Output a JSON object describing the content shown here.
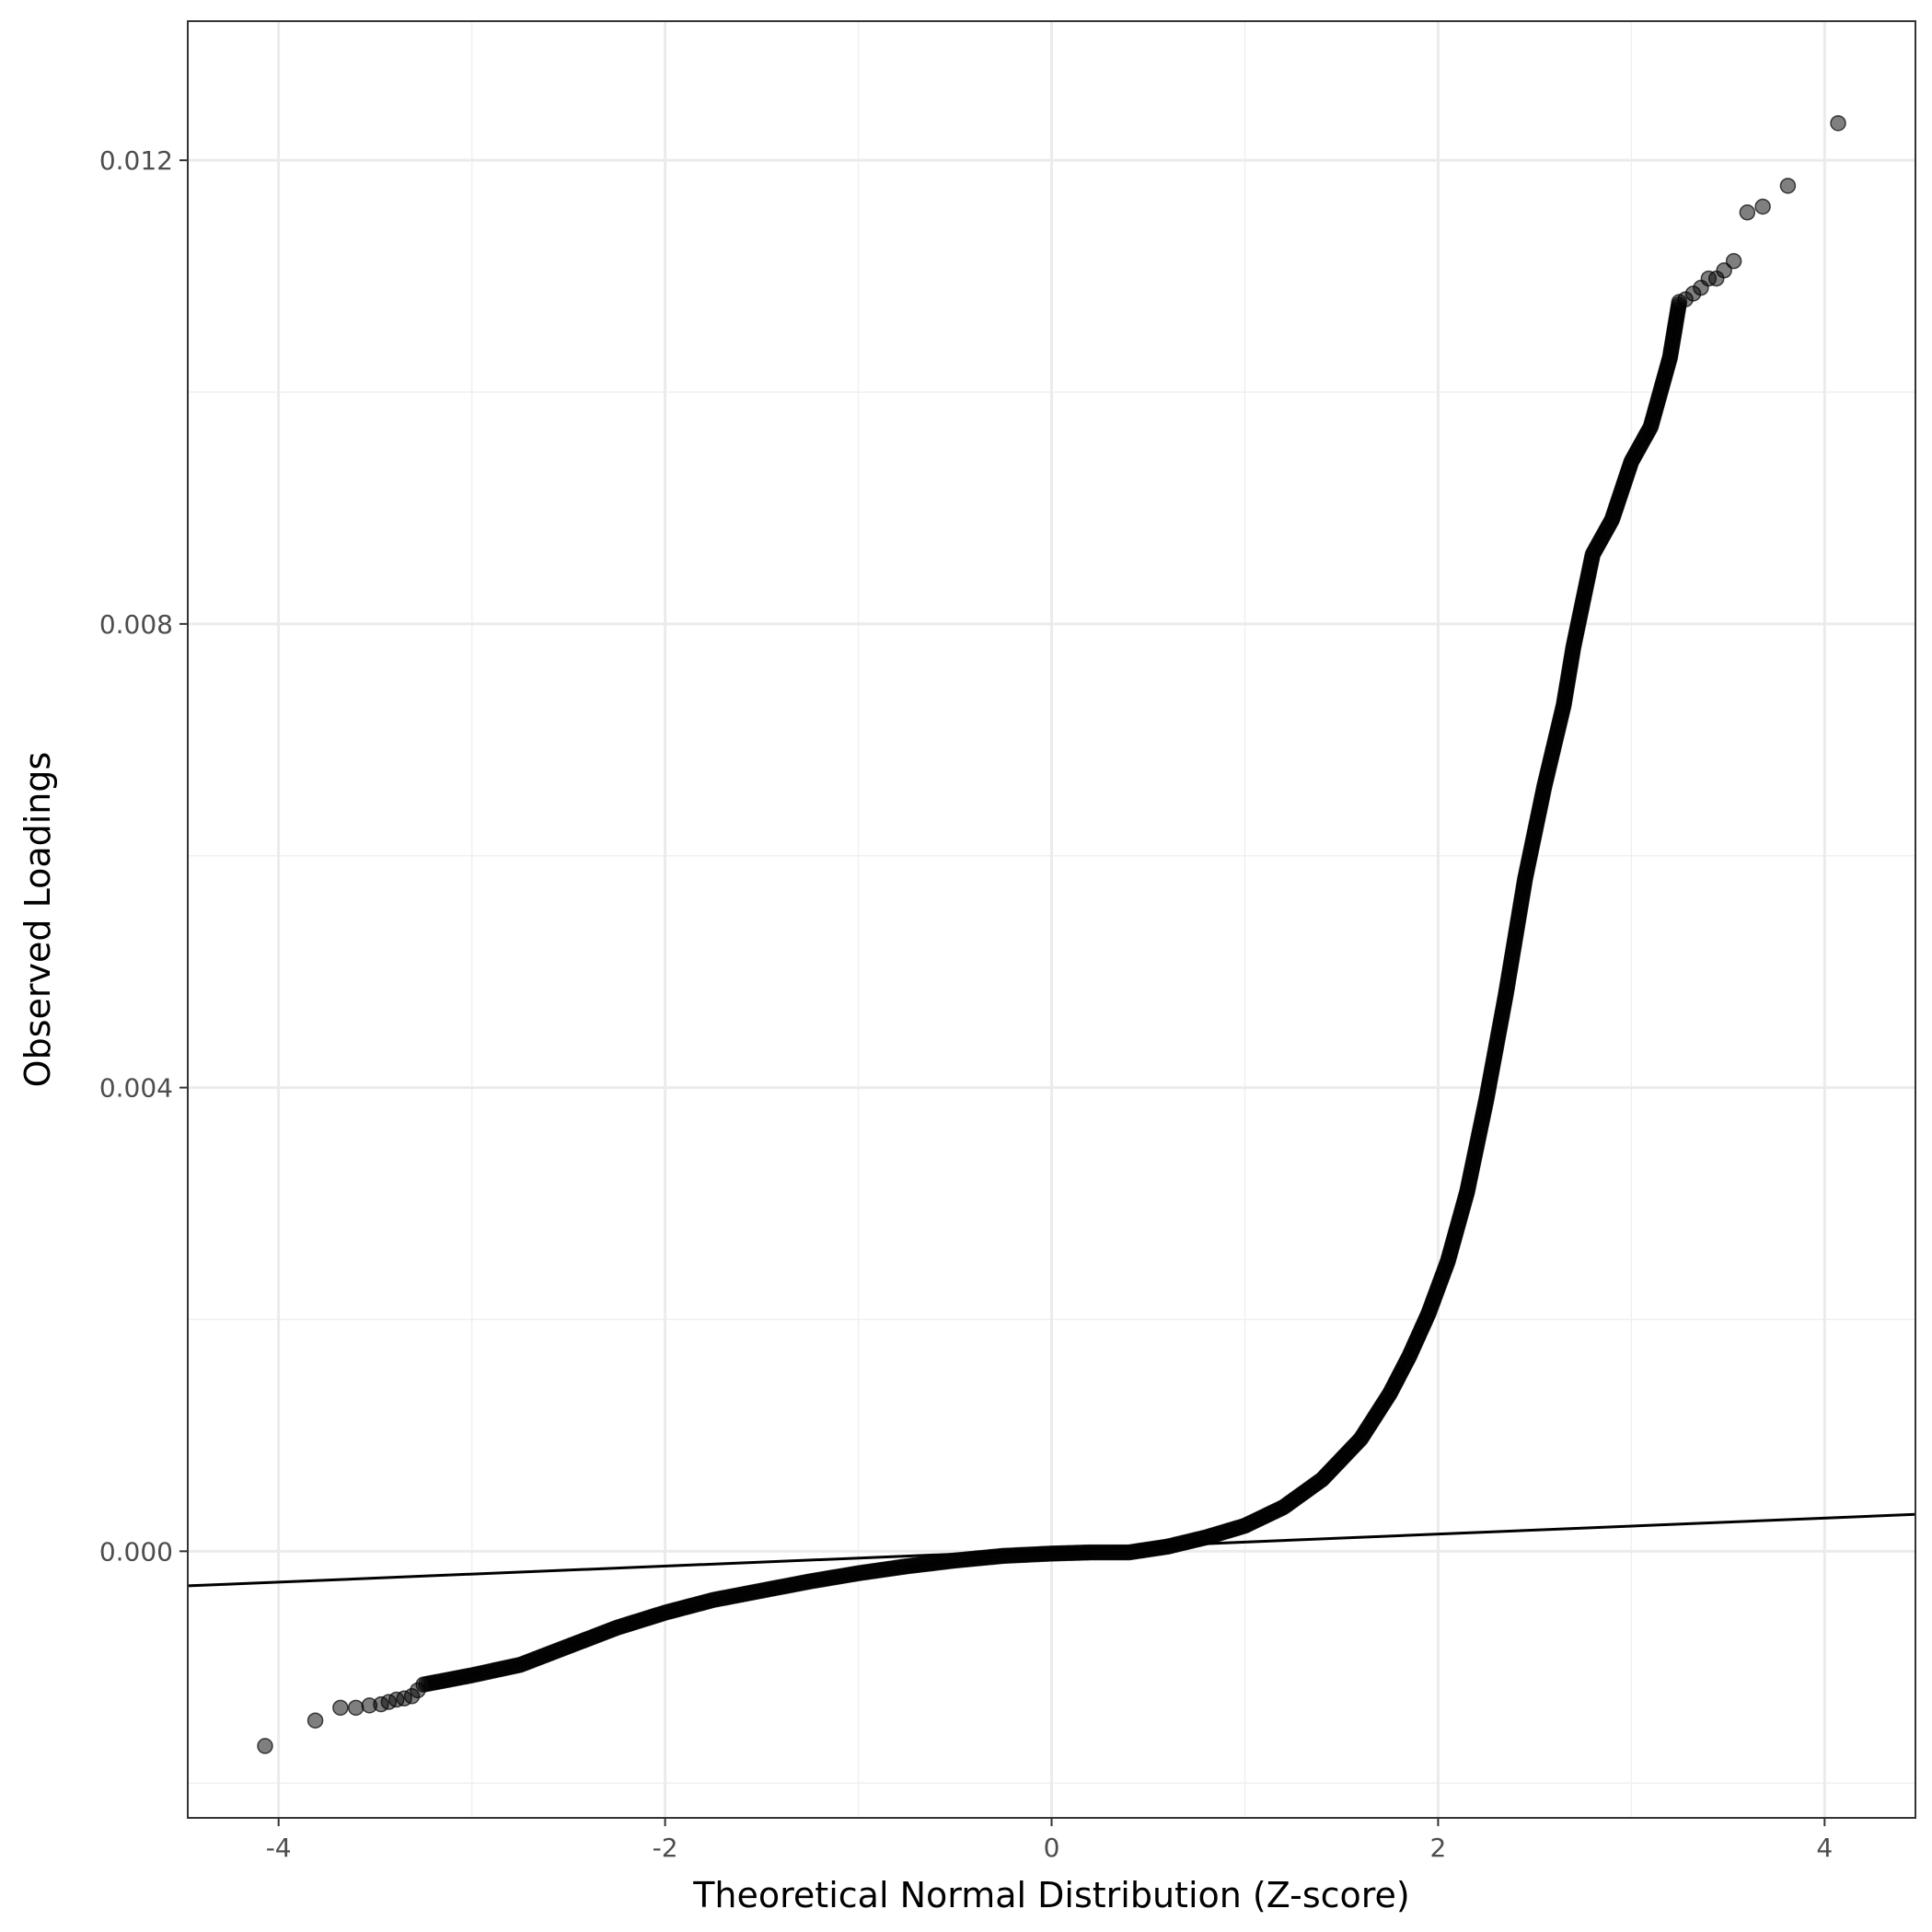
{
  "chart_data": {
    "type": "scatter",
    "title": "",
    "xlabel": "Theoretical Normal Distribution (Z-score)",
    "ylabel": "Observed Loadings",
    "xlim": [
      -4.47,
      4.47
    ],
    "ylim": [
      -0.0023,
      0.0132
    ],
    "grid": true,
    "legend": "none",
    "x_ticks": [
      -4,
      -2,
      0,
      2,
      4
    ],
    "x_tick_labels": [
      "-4",
      "-2",
      "0",
      "2",
      "4"
    ],
    "y_ticks": [
      0.0,
      0.004,
      0.008,
      0.012
    ],
    "y_tick_labels": [
      "0.000",
      "0.004",
      "0.008",
      "0.012"
    ],
    "reference_line": {
      "slope": 6.9e-05,
      "intercept": 1e-05
    },
    "curve_points": [
      [
        -3.25,
        -0.00115
      ],
      [
        -3.0,
        -0.00107
      ],
      [
        -2.75,
        -0.00098
      ],
      [
        -2.5,
        -0.00082
      ],
      [
        -2.25,
        -0.00066
      ],
      [
        -2.0,
        -0.00053
      ],
      [
        -1.75,
        -0.00042
      ],
      [
        -1.5,
        -0.00034
      ],
      [
        -1.25,
        -0.00026
      ],
      [
        -1.0,
        -0.00019
      ],
      [
        -0.75,
        -0.00013
      ],
      [
        -0.5,
        -8e-05
      ],
      [
        -0.25,
        -4e-05
      ],
      [
        0.0,
        -2e-05
      ],
      [
        0.2,
        -1e-05
      ],
      [
        0.4,
        -1e-05
      ],
      [
        0.6,
        4e-05
      ],
      [
        0.8,
        0.00012
      ],
      [
        1.0,
        0.00022
      ],
      [
        1.2,
        0.00038
      ],
      [
        1.4,
        0.00062
      ],
      [
        1.6,
        0.00097
      ],
      [
        1.75,
        0.00136
      ],
      [
        1.85,
        0.00168
      ],
      [
        1.95,
        0.00205
      ],
      [
        2.05,
        0.0025
      ],
      [
        2.15,
        0.0031
      ],
      [
        2.25,
        0.0039
      ],
      [
        2.35,
        0.0048
      ],
      [
        2.45,
        0.0058
      ],
      [
        2.55,
        0.0066
      ],
      [
        2.65,
        0.0073
      ],
      [
        2.7,
        0.0078
      ],
      [
        2.75,
        0.0082
      ],
      [
        2.8,
        0.0086
      ],
      [
        2.9,
        0.0089
      ],
      [
        3.0,
        0.0094
      ],
      [
        3.1,
        0.0097
      ],
      [
        3.2,
        0.0103
      ],
      [
        3.25,
        0.0108
      ]
    ],
    "outliers": [
      [
        -4.07,
        -0.00168
      ],
      [
        -3.81,
        -0.00146
      ],
      [
        -3.68,
        -0.00135
      ],
      [
        -3.6,
        -0.00135
      ],
      [
        -3.53,
        -0.00133
      ],
      [
        -3.47,
        -0.00132
      ],
      [
        -3.43,
        -0.0013
      ],
      [
        -3.39,
        -0.00128
      ],
      [
        -3.35,
        -0.00127
      ],
      [
        -3.31,
        -0.00125
      ],
      [
        -3.28,
        -0.0012
      ],
      [
        3.28,
        0.0108
      ],
      [
        3.32,
        0.01085
      ],
      [
        3.36,
        0.0109
      ],
      [
        3.4,
        0.01098
      ],
      [
        3.44,
        0.01098
      ],
      [
        3.48,
        0.01105
      ],
      [
        3.53,
        0.01113
      ],
      [
        3.6,
        0.01155
      ],
      [
        3.68,
        0.0116
      ],
      [
        3.81,
        0.01178
      ],
      [
        4.07,
        0.01232
      ]
    ]
  }
}
